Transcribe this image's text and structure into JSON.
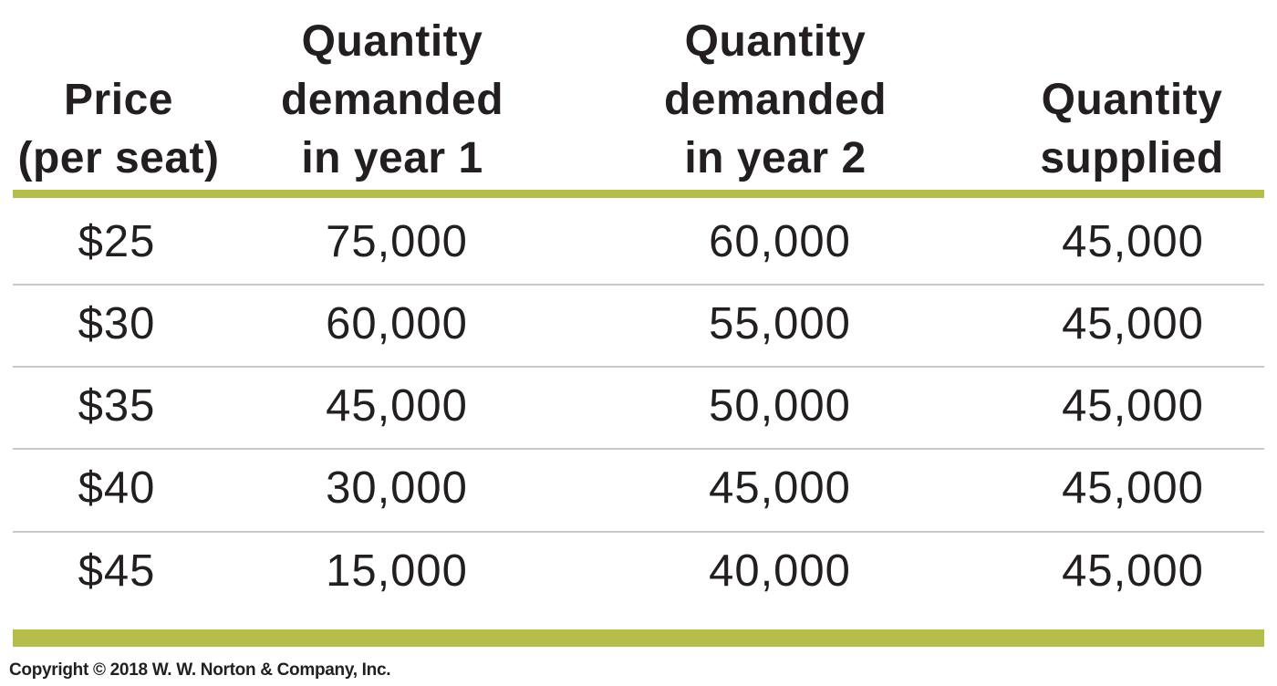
{
  "chart_data": {
    "type": "table",
    "columns": [
      [
        "Price",
        "(per seat)"
      ],
      [
        "Quantity",
        "demanded",
        "in year 1"
      ],
      [
        "Quantity",
        "demanded",
        "in year 2"
      ],
      [
        "Quantity",
        "supplied"
      ]
    ],
    "rows": [
      [
        "$25",
        "75,000",
        "60,000",
        "45,000"
      ],
      [
        "$30",
        "60,000",
        "55,000",
        "45,000"
      ],
      [
        "$35",
        "45,000",
        "50,000",
        "45,000"
      ],
      [
        "$40",
        "30,000",
        "45,000",
        "45,000"
      ],
      [
        "$45",
        "15,000",
        "40,000",
        "45,000"
      ]
    ],
    "accent_color": "#b5bd4b",
    "divider_color": "#c9c9c9"
  },
  "footer": {
    "copyright": "Copyright © 2018 W. W. Norton & Company, Inc."
  }
}
